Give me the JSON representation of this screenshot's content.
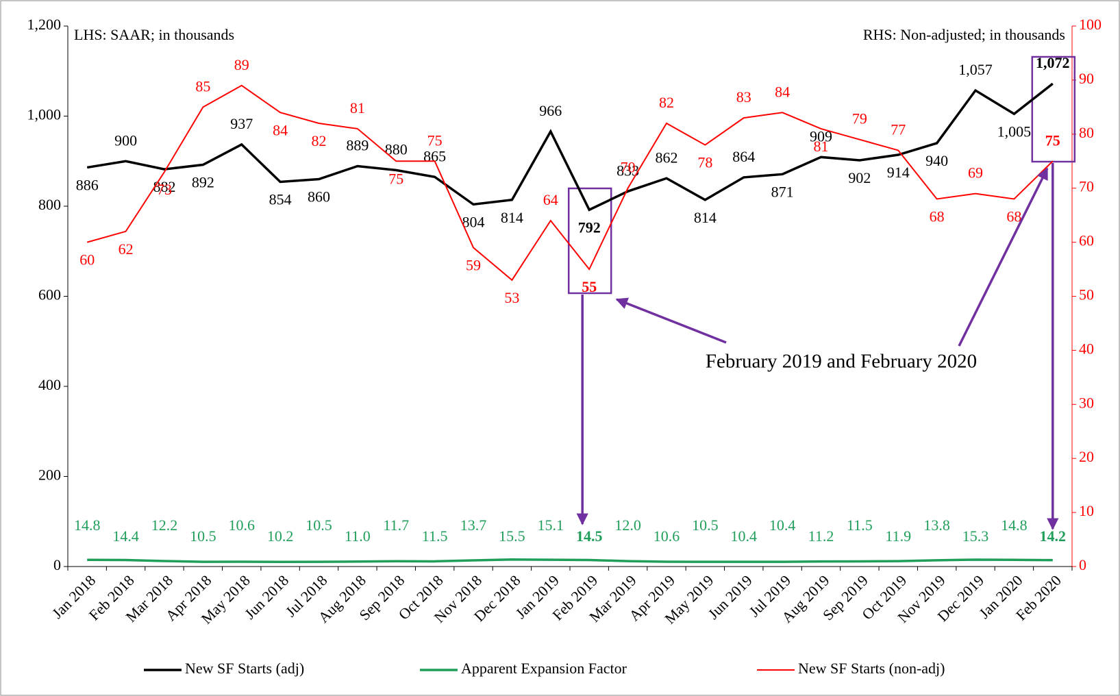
{
  "chart_data": {
    "type": "line",
    "annotations": [
      "LHS: SAAR;  in thousands",
      "RHS: Non-adjusted; in thousands",
      "February 2019 and February 2020"
    ],
    "categories": [
      "Jan 2018",
      "Feb 2018",
      "Mar 2018",
      "Apr 2018",
      "May 2018",
      "Jun 2018",
      "Jul 2018",
      "Aug 2018",
      "Sep 2018",
      "Oct 2018",
      "Nov 2018",
      "Dec 2018",
      "Jan 2019",
      "Feb 2019",
      "Mar 2019",
      "Apr 2019",
      "May 2019",
      "Jun 2019",
      "Jul 2019",
      "Aug 2019",
      "Sep 2019",
      "Oct 2019",
      "Nov 2019",
      "Dec 2019",
      "Jan 2020",
      "Feb 2020"
    ],
    "series": [
      {
        "name": "New SF Starts (adj)",
        "color": "#000000",
        "values": [
          886,
          900,
          882,
          892,
          937,
          854,
          860,
          889,
          880,
          865,
          804,
          814,
          966,
          792,
          833,
          862,
          814,
          864,
          871,
          909,
          902,
          914,
          940,
          1057,
          1005,
          1072
        ],
        "value_labels": [
          "886",
          "900",
          "882",
          "892",
          "937",
          "854",
          "860",
          "889",
          "880",
          "865",
          "804",
          "814",
          "966",
          "792",
          "833",
          "862",
          "814",
          "864",
          "871",
          "909",
          "902",
          "914",
          "940",
          "1,057",
          "1,005",
          "1,072"
        ]
      },
      {
        "name": "Apparent Expansion Factor",
        "color": "#1f9e5a",
        "values": [
          14.8,
          14.4,
          12.2,
          10.5,
          10.6,
          10.2,
          10.5,
          11.0,
          11.7,
          11.5,
          13.7,
          15.5,
          15.1,
          14.5,
          12.0,
          10.6,
          10.5,
          10.4,
          10.4,
          11.2,
          11.5,
          11.9,
          13.8,
          15.3,
          14.8,
          14.2
        ],
        "value_labels": [
          "14.8",
          "14.4",
          "12.2",
          "10.5",
          "10.6",
          "10.2",
          "10.5",
          "11.0",
          "11.7",
          "11.5",
          "13.7",
          "15.5",
          "15.1",
          "14.5",
          "12.0",
          "10.6",
          "10.5",
          "10.4",
          "10.4",
          "11.2",
          "11.5",
          "11.9",
          "13.8",
          "15.3",
          "14.8",
          "14.2"
        ]
      },
      {
        "name": "New SF Starts (non-adj)",
        "color": "#ff0000",
        "axis": "y2",
        "values": [
          60,
          62,
          73,
          85,
          89,
          84,
          82,
          81,
          75,
          75,
          59,
          53,
          64,
          55,
          70,
          82,
          78,
          83,
          84,
          81,
          79,
          77,
          68,
          69,
          68,
          75
        ]
      }
    ],
    "ylim": [
      0,
      1200
    ],
    "yticks": [
      0,
      200,
      400,
      600,
      800,
      {
        "value": 1000,
        "label": "1,000"
      },
      {
        "value": 1200,
        "label": "1,200"
      }
    ],
    "y2lim": [
      0,
      100
    ],
    "y2ticks": [
      0,
      10,
      20,
      30,
      40,
      50,
      60,
      70,
      80,
      90,
      100
    ],
    "legend": "bottom"
  }
}
